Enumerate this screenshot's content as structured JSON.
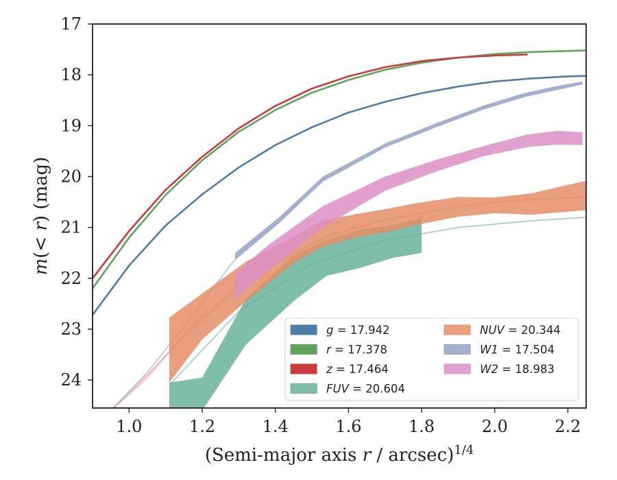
{
  "chart_data": {
    "type": "area",
    "title": "",
    "xlabel": "(Semi-major axis r / arcsec)",
    "xlabel_parts": [
      "(Semi-major axis ",
      "r",
      " / arcsec)"
    ],
    "xlabel_superscript": "1/4",
    "ylabel": "m(< r) (mag)",
    "ylabel_parts": [
      "m",
      "(< ",
      "r",
      ") (mag)"
    ],
    "xlim": [
      0.9,
      2.25
    ],
    "ylim": [
      24.55,
      17.0
    ],
    "y_inverted": true,
    "xticks": [
      1.0,
      1.2,
      1.4,
      1.6,
      1.8,
      2.0,
      2.2
    ],
    "xtick_labels": [
      "1.0",
      "1.2",
      "1.4",
      "1.6",
      "1.8",
      "2.0",
      "2.2"
    ],
    "yticks": [
      17,
      18,
      19,
      20,
      21,
      22,
      23,
      24
    ],
    "ytick_labels": [
      "17",
      "18",
      "19",
      "20",
      "21",
      "22",
      "23",
      "24"
    ],
    "grid": false,
    "legend_placement": "lower right",
    "series": [
      {
        "name": "g = 17.942",
        "legend_var": "g",
        "legend_value": "= 17.942",
        "color": "#4c7daa",
        "kind": "line",
        "x": [
          0.9,
          1.0,
          1.1,
          1.2,
          1.3,
          1.4,
          1.5,
          1.6,
          1.7,
          1.8,
          1.9,
          2.0,
          2.1,
          2.2,
          2.25
        ],
        "y": [
          22.72,
          21.75,
          20.96,
          20.35,
          19.82,
          19.38,
          19.03,
          18.74,
          18.53,
          18.36,
          18.23,
          18.13,
          18.07,
          18.03,
          18.02
        ]
      },
      {
        "name": "r = 17.378",
        "legend_var": "r",
        "legend_value": "= 17.378",
        "color": "#5fa35d",
        "kind": "line",
        "x": [
          0.9,
          1.0,
          1.1,
          1.2,
          1.3,
          1.4,
          1.5,
          1.6,
          1.7,
          1.8,
          1.9,
          2.0,
          2.1,
          2.2,
          2.25
        ],
        "y": [
          22.2,
          21.2,
          20.36,
          19.68,
          19.12,
          18.69,
          18.35,
          18.1,
          17.9,
          17.76,
          17.66,
          17.59,
          17.55,
          17.53,
          17.52
        ]
      },
      {
        "name": "z = 17.464",
        "legend_var": "z",
        "legend_value": "= 17.464",
        "color": "#cc3b3b",
        "kind": "line",
        "x": [
          0.9,
          1.0,
          1.1,
          1.2,
          1.3,
          1.4,
          1.5,
          1.6,
          1.7,
          1.8,
          1.9,
          2.0,
          2.09
        ],
        "y": [
          22.0,
          21.07,
          20.26,
          19.61,
          19.05,
          18.61,
          18.27,
          18.03,
          17.85,
          17.73,
          17.66,
          17.62,
          17.6
        ]
      },
      {
        "name": "FUV = 20.604",
        "legend_var": "FUV",
        "legend_value": "= 20.604",
        "color": "#68b39a",
        "kind": "band",
        "x": [
          1.11,
          1.2,
          1.32,
          1.45,
          1.54,
          1.63,
          1.72,
          1.8
        ],
        "y_low": [
          24.05,
          23.95,
          22.4,
          21.55,
          21.25,
          21.05,
          20.95,
          20.82
        ],
        "y_high": [
          24.6,
          24.6,
          23.3,
          22.45,
          21.95,
          21.8,
          21.6,
          21.5
        ],
        "model_x": [
          1.11,
          1.3,
          1.5,
          1.7,
          1.9,
          2.1,
          2.25
        ],
        "model_y": [
          24.1,
          22.65,
          21.72,
          21.25,
          21.0,
          20.87,
          20.8
        ]
      },
      {
        "name": "NUV = 20.344",
        "legend_var": "NUV",
        "legend_value": "= 20.344",
        "color": "#e58d66",
        "kind": "band",
        "x": [
          1.11,
          1.2,
          1.32,
          1.45,
          1.53,
          1.62,
          1.7,
          1.78,
          1.9,
          2.0,
          2.1,
          2.25
        ],
        "y_low": [
          22.77,
          22.3,
          21.67,
          21.18,
          20.86,
          20.74,
          20.64,
          20.53,
          20.4,
          20.41,
          20.33,
          20.08
        ],
        "y_high": [
          24.05,
          23.2,
          22.45,
          21.7,
          21.38,
          21.2,
          21.1,
          20.96,
          20.79,
          20.72,
          20.75,
          20.66
        ],
        "model_x": [
          0.95,
          1.05,
          1.15,
          1.25,
          1.4,
          1.55,
          1.7,
          1.85,
          2.0,
          2.15,
          2.25
        ],
        "model_y": [
          24.6,
          23.9,
          23.15,
          22.5,
          21.7,
          21.15,
          20.85,
          20.65,
          20.5,
          20.43,
          20.4
        ]
      },
      {
        "name": "W1 = 17.504",
        "legend_var": "W1",
        "legend_value": "= 17.504",
        "color": "#95a2c6",
        "kind": "band",
        "x": [
          1.29,
          1.41,
          1.53,
          1.7,
          1.84,
          1.97,
          2.08,
          2.17,
          2.24
        ],
        "y_low": [
          21.5,
          20.8,
          20.0,
          19.35,
          18.95,
          18.6,
          18.36,
          18.22,
          18.13
        ],
        "y_high": [
          21.64,
          20.92,
          20.1,
          19.43,
          19.03,
          18.68,
          18.44,
          18.3,
          18.19
        ],
        "model_x": [
          0.95,
          1.05,
          1.15,
          1.25,
          1.29
        ],
        "model_y": [
          24.6,
          23.85,
          22.95,
          22.0,
          21.62
        ]
      },
      {
        "name": "W2 = 18.983",
        "legend_var": "W2",
        "legend_value": "= 18.983",
        "color": "#dc8fc6",
        "kind": "band",
        "x": [
          1.29,
          1.38,
          1.53,
          1.7,
          1.84,
          1.97,
          2.09,
          2.17,
          2.24
        ],
        "y_low": [
          21.9,
          21.35,
          20.58,
          20.0,
          19.67,
          19.4,
          19.17,
          19.1,
          19.13
        ],
        "y_high": [
          22.4,
          21.85,
          21.0,
          20.28,
          19.9,
          19.6,
          19.42,
          19.37,
          19.38
        ],
        "model_x": [
          0.95,
          1.05,
          1.15,
          1.25,
          1.29
        ],
        "model_y": [
          24.6,
          23.95,
          23.1,
          22.45,
          22.2
        ]
      }
    ]
  }
}
